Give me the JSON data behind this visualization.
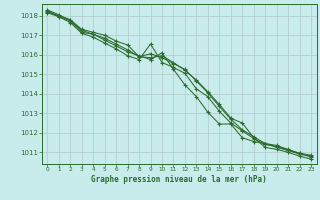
{
  "title": "Graphe pression niveau de la mer (hPa)",
  "background_color": "#c8ecec",
  "grid_color": "#b0c8c8",
  "line_color": "#2d6a2d",
  "marker_color": "#2d6a2d",
  "xlim": [
    -0.5,
    23.5
  ],
  "ylim": [
    1010.4,
    1018.6
  ],
  "yticks": [
    1011,
    1012,
    1013,
    1014,
    1015,
    1016,
    1017,
    1018
  ],
  "xticks": [
    0,
    1,
    2,
    3,
    4,
    5,
    6,
    7,
    8,
    9,
    10,
    11,
    12,
    13,
    14,
    15,
    16,
    17,
    18,
    19,
    20,
    21,
    22,
    23
  ],
  "series": [
    [
      1018.2,
      1018.0,
      1017.8,
      1017.3,
      1017.15,
      1017.0,
      1016.7,
      1016.5,
      1015.9,
      1015.85,
      1015.95,
      1015.6,
      1015.2,
      1014.7,
      1014.1,
      1013.45,
      1012.75,
      1012.5,
      1011.75,
      1011.25,
      1011.15,
      1011.0,
      1010.8,
      1010.65
    ],
    [
      1018.15,
      1017.95,
      1017.75,
      1017.25,
      1017.05,
      1016.85,
      1016.55,
      1016.25,
      1015.9,
      1016.05,
      1015.85,
      1015.55,
      1015.25,
      1014.65,
      1014.05,
      1013.35,
      1012.7,
      1012.15,
      1011.8,
      1011.45,
      1011.35,
      1011.15,
      1010.95,
      1010.85
    ],
    [
      1018.25,
      1017.95,
      1017.65,
      1017.1,
      1016.9,
      1016.6,
      1016.3,
      1015.95,
      1015.75,
      1016.55,
      1015.6,
      1015.35,
      1015.05,
      1014.25,
      1013.85,
      1013.1,
      1012.5,
      1012.1,
      1011.7,
      1011.4,
      1011.3,
      1011.1,
      1010.9,
      1010.8
    ],
    [
      1018.3,
      1018.05,
      1017.75,
      1017.15,
      1017.05,
      1016.75,
      1016.45,
      1016.15,
      1015.95,
      1015.75,
      1016.1,
      1015.25,
      1014.45,
      1013.85,
      1013.05,
      1012.45,
      1012.45,
      1011.75,
      1011.55,
      1011.45,
      1011.25,
      1011.1,
      1010.95,
      1010.75
    ]
  ]
}
